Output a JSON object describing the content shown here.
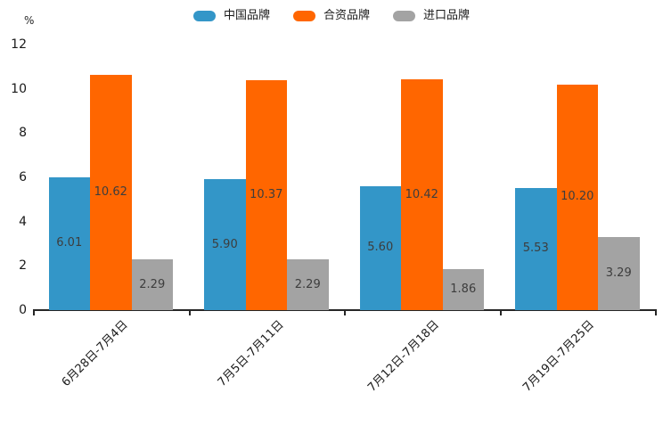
{
  "chart_data": {
    "type": "bar",
    "title": "",
    "unit_label": "%",
    "categories": [
      "6月28日-7月4日",
      "7月5日-7月11日",
      "7月12日-7月18日",
      "7月19日-7月25日"
    ],
    "series": [
      {
        "name": "中国品牌",
        "color": "#3396c8",
        "values": [
          6.01,
          5.9,
          5.6,
          5.53
        ]
      },
      {
        "name": "合资品牌",
        "color": "#ff6600",
        "values": [
          10.62,
          10.37,
          10.42,
          10.2
        ]
      },
      {
        "name": "进口品牌",
        "color": "#a3a3a3",
        "values": [
          2.29,
          2.29,
          1.86,
          3.29
        ]
      }
    ],
    "ylim": [
      0,
      12
    ],
    "yticks": [
      0,
      2,
      4,
      6,
      8,
      10,
      12
    ],
    "value_label_decimals": 2,
    "legend_position": "top",
    "grid": false,
    "value_labels": true
  }
}
